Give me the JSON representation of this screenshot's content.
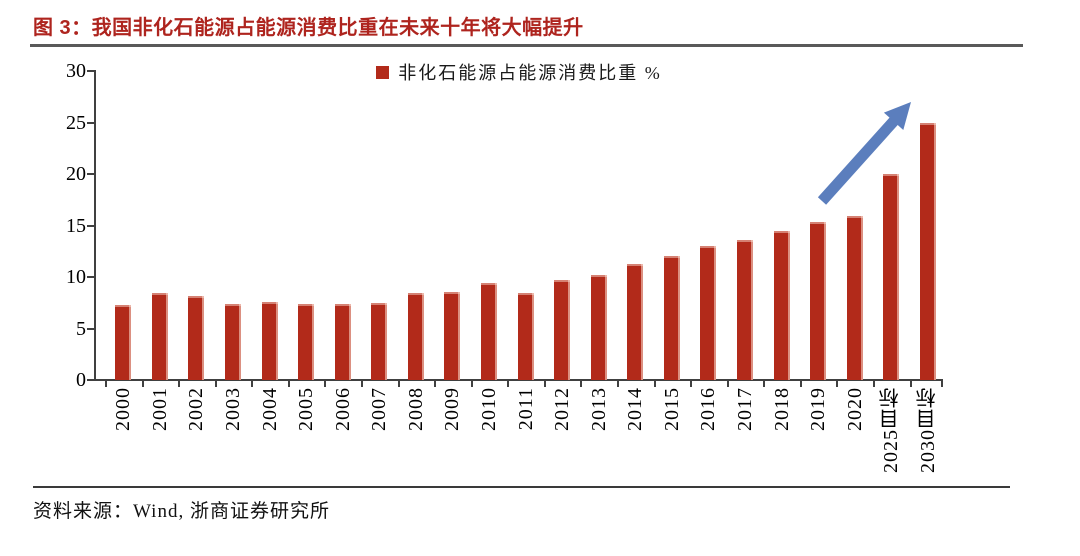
{
  "header": {
    "title": "图 3：我国非化石能源占能源消费比重在未来十年将大幅提升"
  },
  "footer": {
    "source": "资料来源：Wind, 浙商证券研究所"
  },
  "colors": {
    "title_red": "#AE241E",
    "bar_red": "#B22A1A",
    "arrow_blue": "#5B7EBD",
    "axis_gray": "#404040",
    "divider_gray": "#595959"
  },
  "chart_data": {
    "type": "bar",
    "title": "图 3：我国非化石能源占能源消费比重在未来十年将大幅提升",
    "categories": [
      "2000",
      "2001",
      "2002",
      "2003",
      "2004",
      "2005",
      "2006",
      "2007",
      "2008",
      "2009",
      "2010",
      "2011",
      "2012",
      "2013",
      "2014",
      "2015",
      "2016",
      "2017",
      "2018",
      "2019",
      "2020",
      "2025目标",
      "2030目标"
    ],
    "series": [
      {
        "name": "非化石能源占能源消费比重 %",
        "color": "#B22A1A",
        "values": [
          7.3,
          8.4,
          8.2,
          7.4,
          7.6,
          7.4,
          7.4,
          7.5,
          8.4,
          8.5,
          9.4,
          8.4,
          9.7,
          10.2,
          11.3,
          12.0,
          13.0,
          13.6,
          14.5,
          15.3,
          15.9,
          20.0,
          25.0
        ]
      }
    ],
    "xlabel": "",
    "ylabel": "",
    "ylim": [
      0,
      30
    ],
    "yticks": [
      0,
      5,
      10,
      15,
      20,
      25,
      30
    ],
    "grid": false,
    "legend_position": "top-center",
    "annotation": {
      "type": "arrow",
      "description": "蓝色上升箭头指向2025/2030目标",
      "color": "#5B7EBD"
    }
  }
}
